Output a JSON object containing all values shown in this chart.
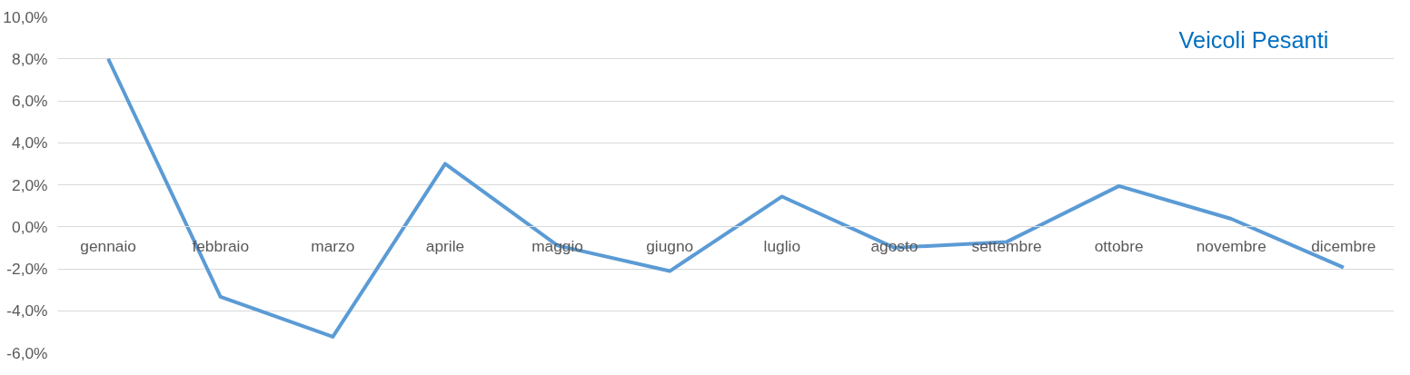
{
  "chart_data": {
    "type": "line",
    "title": "Veicoli Pesanti",
    "categories": [
      "gennaio",
      "febbraio",
      "marzo",
      "aprile",
      "maggio",
      "giugno",
      "luglio",
      "agosto",
      "settembre",
      "ottobre",
      "novembre",
      "dicembre"
    ],
    "series": [
      {
        "color": "#5b9bd5",
        "values": [
          8.0,
          -3.34,
          -5.24,
          3.0,
          -0.89,
          -2.11,
          1.44,
          -1.0,
          -0.72,
          1.94,
          0.38,
          -1.94
        ]
      }
    ],
    "ylim": [
      -6,
      10
    ],
    "yticks": [
      {
        "value": -6,
        "label": "-6,0%"
      },
      {
        "value": -4,
        "label": "-4,0%"
      },
      {
        "value": -2,
        "label": "-2,0%"
      },
      {
        "value": 0,
        "label": "0,0%"
      },
      {
        "value": 2,
        "label": "2,0%"
      },
      {
        "value": 4,
        "label": "4,0%"
      },
      {
        "value": 6,
        "label": "6,0%"
      },
      {
        "value": 8,
        "label": "8,0%"
      },
      {
        "value": 10,
        "label": "10,0%"
      }
    ],
    "grid": "y",
    "marker": "none",
    "line_style": "solid"
  }
}
